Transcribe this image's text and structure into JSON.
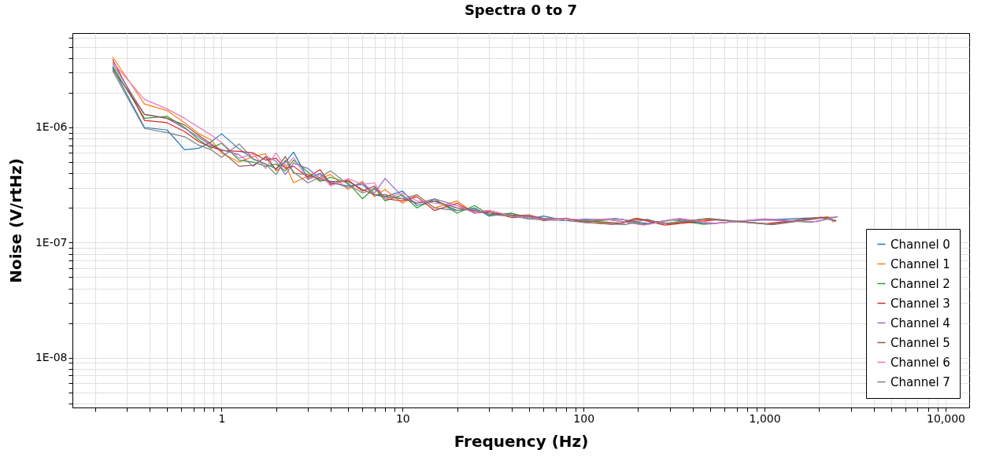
{
  "chart_data": {
    "type": "line",
    "title": "Spectra 0 to 7",
    "xlabel": "Frequency (Hz)",
    "ylabel": "Noise (V/rtHz)",
    "log": "xy",
    "grid": true,
    "legend": "bottom right",
    "line_style": "solid",
    "marker": "none",
    "xlim": [
      0.15,
      13500
    ],
    "ylim": [
      3.7e-09,
      6.6e-06
    ],
    "xticks": [
      {
        "value": 0.2,
        "label": null
      },
      {
        "value": 0.3,
        "label": null
      },
      {
        "value": 0.4,
        "label": null
      },
      {
        "value": 0.5,
        "label": null
      },
      {
        "value": 0.6,
        "label": null
      },
      {
        "value": 0.7,
        "label": null
      },
      {
        "value": 0.8,
        "label": null
      },
      {
        "value": 0.9,
        "label": null
      },
      1,
      {
        "value": 2,
        "label": null
      },
      {
        "value": 3,
        "label": null
      },
      {
        "value": 4,
        "label": null
      },
      {
        "value": 5,
        "label": null
      },
      {
        "value": 6,
        "label": null
      },
      {
        "value": 7,
        "label": null
      },
      {
        "value": 8,
        "label": null
      },
      {
        "value": 9,
        "label": null
      },
      10,
      {
        "value": 20,
        "label": null
      },
      {
        "value": 30,
        "label": null
      },
      {
        "value": 40,
        "label": null
      },
      {
        "value": 50,
        "label": null
      },
      {
        "value": 60,
        "label": null
      },
      {
        "value": 70,
        "label": null
      },
      {
        "value": 80,
        "label": null
      },
      {
        "value": 90,
        "label": null
      },
      100,
      {
        "value": 200,
        "label": null
      },
      {
        "value": 300,
        "label": null
      },
      {
        "value": 400,
        "label": null
      },
      {
        "value": 500,
        "label": null
      },
      {
        "value": 600,
        "label": null
      },
      {
        "value": 700,
        "label": null
      },
      {
        "value": 800,
        "label": null
      },
      {
        "value": 900,
        "label": null
      },
      {
        "value": 1000,
        "label": "1,000"
      },
      {
        "value": 2000,
        "label": null
      },
      {
        "value": 3000,
        "label": null
      },
      {
        "value": 4000,
        "label": null
      },
      {
        "value": 5000,
        "label": null
      },
      {
        "value": 6000,
        "label": null
      },
      {
        "value": 7000,
        "label": null
      },
      {
        "value": 8000,
        "label": null
      },
      {
        "value": 9000,
        "label": null
      },
      {
        "value": 10000,
        "label": "10,000"
      }
    ],
    "yticks": [
      {
        "value": 4e-09,
        "label": null
      },
      {
        "value": 5e-09,
        "label": null
      },
      {
        "value": 6e-09,
        "label": null
      },
      {
        "value": 7e-09,
        "label": null
      },
      {
        "value": 8e-09,
        "label": null
      },
      {
        "value": 9e-09,
        "label": null
      },
      {
        "value": 1e-08,
        "label": "1E-08"
      },
      {
        "value": 2e-08,
        "label": null
      },
      {
        "value": 3e-08,
        "label": null
      },
      {
        "value": 4e-08,
        "label": null
      },
      {
        "value": 5e-08,
        "label": null
      },
      {
        "value": 6e-08,
        "label": null
      },
      {
        "value": 7e-08,
        "label": null
      },
      {
        "value": 8e-08,
        "label": null
      },
      {
        "value": 9e-08,
        "label": null
      },
      {
        "value": 1e-07,
        "label": "1E-07"
      },
      {
        "value": 2e-07,
        "label": null
      },
      {
        "value": 3e-07,
        "label": null
      },
      {
        "value": 4e-07,
        "label": null
      },
      {
        "value": 5e-07,
        "label": null
      },
      {
        "value": 6e-07,
        "label": null
      },
      {
        "value": 7e-07,
        "label": null
      },
      {
        "value": 8e-07,
        "label": null
      },
      {
        "value": 9e-07,
        "label": null
      },
      {
        "value": 1e-06,
        "label": "1E-06"
      },
      {
        "value": 2e-06,
        "label": null
      },
      {
        "value": 3e-06,
        "label": null
      },
      {
        "value": 4e-06,
        "label": null
      },
      {
        "value": 5e-06,
        "label": null
      },
      {
        "value": 6e-06,
        "label": null
      }
    ],
    "series": [
      {
        "name": "Channel 0",
        "color": "#1f77b4",
        "x": [
          0.25,
          0.375,
          0.5,
          0.625,
          0.75,
          0.875,
          1,
          1.25,
          1.5,
          1.75,
          2,
          2.25,
          2.5,
          3,
          3.5,
          4,
          5,
          6,
          7,
          8,
          10,
          12,
          15,
          20,
          25,
          30,
          40,
          50,
          60,
          80,
          100,
          140,
          210,
          320,
          480,
          950,
          1900,
          2500
        ],
        "values": [
          3.3e-06,
          1e-06,
          9.5e-07,
          6.4e-07,
          6.6e-07,
          7.5e-07,
          8.8e-07,
          6.5e-07,
          5.3e-07,
          4.8e-07,
          4.4e-07,
          5e-07,
          6.1e-07,
          3.6e-07,
          4e-07,
          3.3e-07,
          3.1e-07,
          3.2e-07,
          2.6e-07,
          2.5e-07,
          2.8e-07,
          2.1e-07,
          2.3e-07,
          1.9e-07,
          2e-07,
          1.7e-07,
          1.8e-07,
          1.6e-07,
          1.7e-07,
          1.55e-07,
          1.6e-07,
          1.58e-07,
          1.44e-07,
          1.6e-07,
          1.46e-07,
          1.57e-07,
          1.64e-07,
          1.66e-07
        ]
      },
      {
        "name": "Channel 1",
        "color": "#ff7f0e",
        "x": [
          0.25,
          0.375,
          0.5,
          0.625,
          0.75,
          0.875,
          1,
          1.25,
          1.5,
          1.75,
          2,
          2.25,
          2.5,
          3,
          3.5,
          4,
          5,
          6,
          7,
          8,
          10,
          12,
          15,
          20,
          25,
          30,
          40,
          50,
          60,
          80,
          100,
          155,
          190,
          290,
          520,
          1050,
          2250,
          2400
        ],
        "values": [
          4.1e-06,
          1.6e-06,
          1.4e-06,
          1.1e-06,
          8.8e-07,
          7.8e-07,
          6e-07,
          5e-07,
          5.6e-07,
          5.9e-07,
          4.2e-07,
          4.8e-07,
          3.3e-07,
          3.8e-07,
          3.6e-07,
          3.9e-07,
          2.9e-07,
          3.4e-07,
          2.5e-07,
          2.9e-07,
          2.2e-07,
          2.6e-07,
          2e-07,
          2.3e-07,
          1.8e-07,
          1.9e-07,
          1.7e-07,
          1.75e-07,
          1.6e-07,
          1.62e-07,
          1.55e-07,
          1.45e-07,
          1.62e-07,
          1.47e-07,
          1.59e-07,
          1.45e-07,
          1.68e-07,
          1.5e-07
        ]
      },
      {
        "name": "Channel 2",
        "color": "#2ca02c",
        "x": [
          0.25,
          0.375,
          0.5,
          0.625,
          0.75,
          0.875,
          1,
          1.25,
          1.5,
          1.75,
          2,
          2.25,
          2.5,
          3,
          3.5,
          4,
          5,
          6,
          7,
          8,
          10,
          12,
          15,
          20,
          25,
          30,
          40,
          50,
          60,
          80,
          100,
          160,
          220,
          310,
          460,
          980,
          1800,
          2520
        ],
        "values": [
          3.4e-06,
          1.2e-06,
          1.25e-06,
          1e-06,
          7.8e-07,
          6.6e-07,
          7.3e-07,
          5.2e-07,
          5e-07,
          4.6e-07,
          4.8e-07,
          4.2e-07,
          5.2e-07,
          4.1e-07,
          3.4e-07,
          3.7e-07,
          3.3e-07,
          2.4e-07,
          3e-07,
          2.3e-07,
          2.6e-07,
          2e-07,
          2.4e-07,
          1.8e-07,
          2.1e-07,
          1.75e-07,
          1.8e-07,
          1.65e-07,
          1.6e-07,
          1.6e-07,
          1.52e-07,
          1.6e-07,
          1.43e-07,
          1.57e-07,
          1.44e-07,
          1.6e-07,
          1.5e-07,
          1.67e-07
        ]
      },
      {
        "name": "Channel 3",
        "color": "#d62728",
        "x": [
          0.25,
          0.375,
          0.5,
          0.625,
          0.75,
          0.875,
          1,
          1.25,
          1.5,
          1.75,
          2,
          2.25,
          2.5,
          3,
          3.5,
          4,
          5,
          6,
          7,
          8,
          10,
          12,
          15,
          20,
          25,
          30,
          40,
          50,
          60,
          80,
          100,
          145,
          205,
          280,
          540,
          1020,
          2050,
          2480
        ],
        "values": [
          3.9e-06,
          1.15e-06,
          1.1e-06,
          9.2e-07,
          7.5e-07,
          6.8e-07,
          6.3e-07,
          6.2e-07,
          6e-07,
          5.2e-07,
          5.4e-07,
          4.4e-07,
          4.6e-07,
          3.7e-07,
          4.3e-07,
          3.2e-07,
          3.5e-07,
          2.8e-07,
          3.1e-07,
          2.4e-07,
          2.3e-07,
          2.5e-07,
          1.9e-07,
          2.2e-07,
          1.8e-07,
          1.85e-07,
          1.65e-07,
          1.7e-07,
          1.55e-07,
          1.63e-07,
          1.5e-07,
          1.44e-07,
          1.59e-07,
          1.42e-07,
          1.58e-07,
          1.46e-07,
          1.66e-07,
          1.54e-07
        ]
      },
      {
        "name": "Channel 4",
        "color": "#9467bd",
        "x": [
          0.25,
          0.375,
          0.5,
          0.625,
          0.75,
          0.875,
          1,
          1.25,
          1.5,
          1.75,
          2,
          2.25,
          2.5,
          3,
          3.5,
          4,
          5,
          6,
          7,
          8,
          10,
          12,
          15,
          20,
          25,
          30,
          40,
          50,
          60,
          80,
          100,
          150,
          230,
          330,
          500,
          900,
          1950,
          2530
        ],
        "values": [
          3.6e-06,
          1.3e-06,
          1.2e-06,
          9.8e-07,
          8.2e-07,
          7e-07,
          6.4e-07,
          5.8e-07,
          4.6e-07,
          5.6e-07,
          5.1e-07,
          3.9e-07,
          4.9e-07,
          4.4e-07,
          3.6e-07,
          3.4e-07,
          3e-07,
          3.3e-07,
          2.7e-07,
          3.6e-07,
          2.5e-07,
          2.2e-07,
          2.4e-07,
          2.1e-07,
          1.85e-07,
          1.9e-07,
          1.7e-07,
          1.72e-07,
          1.62e-07,
          1.6e-07,
          1.56e-07,
          1.62e-07,
          1.46e-07,
          1.61e-07,
          1.45e-07,
          1.58e-07,
          1.52e-07,
          1.68e-07
        ]
      },
      {
        "name": "Channel 5",
        "color": "#8c564b",
        "x": [
          0.25,
          0.375,
          0.5,
          0.625,
          0.75,
          0.875,
          1,
          1.25,
          1.5,
          1.75,
          2,
          2.25,
          2.5,
          3,
          3.5,
          4,
          5,
          6,
          7,
          8,
          10,
          12,
          15,
          20,
          25,
          30,
          40,
          50,
          60,
          80,
          100,
          165,
          195,
          300,
          470,
          1100,
          2150,
          2470
        ],
        "values": [
          3.2e-06,
          1.3e-06,
          1.2e-06,
          1.05e-06,
          8.5e-07,
          7.2e-07,
          6.2e-07,
          4.6e-07,
          4.7e-07,
          5.5e-07,
          4.3e-07,
          5.6e-07,
          4e-07,
          3.9e-07,
          3.5e-07,
          3.4e-07,
          3.4e-07,
          2.9e-07,
          2.6e-07,
          2.6e-07,
          2.4e-07,
          2.2e-07,
          2.3e-07,
          2e-07,
          1.9e-07,
          1.8e-07,
          1.74e-07,
          1.68e-07,
          1.62e-07,
          1.6e-07,
          1.55e-07,
          1.47e-07,
          1.63e-07,
          1.45e-07,
          1.61e-07,
          1.43e-07,
          1.65e-07,
          1.53e-07
        ]
      },
      {
        "name": "Channel 6",
        "color": "#e377c2",
        "x": [
          0.25,
          0.375,
          0.5,
          0.625,
          0.75,
          0.875,
          1,
          1.25,
          1.5,
          1.75,
          2,
          2.25,
          2.5,
          3,
          3.5,
          4,
          5,
          6,
          7,
          8,
          10,
          12,
          15,
          20,
          25,
          30,
          40,
          50,
          60,
          80,
          100,
          135,
          215,
          340,
          530,
          1000,
          1850,
          2550
        ],
        "values": [
          3.7e-06,
          1.75e-06,
          1.45e-06,
          1.2e-06,
          1e-06,
          8.6e-07,
          7.4e-07,
          5.4e-07,
          5.9e-07,
          4.4e-07,
          6e-07,
          4.5e-07,
          5.5e-07,
          3.5e-07,
          3.9e-07,
          3.1e-07,
          3.6e-07,
          3.2e-07,
          3.3e-07,
          2.4e-07,
          2.7e-07,
          2.3e-07,
          2.2e-07,
          2.1e-07,
          1.8e-07,
          1.9e-07,
          1.7e-07,
          1.66e-07,
          1.6e-07,
          1.61e-07,
          1.57e-07,
          1.59e-07,
          1.42e-07,
          1.62e-07,
          1.47e-07,
          1.61e-07,
          1.51e-07,
          1.69e-07
        ]
      },
      {
        "name": "Channel 7",
        "color": "#7f7f7f",
        "x": [
          0.25,
          0.375,
          0.5,
          0.625,
          0.75,
          0.875,
          1,
          1.25,
          1.5,
          1.75,
          2,
          2.25,
          2.5,
          3,
          3.5,
          4,
          5,
          6,
          7,
          8,
          10,
          12,
          15,
          20,
          25,
          30,
          40,
          50,
          60,
          80,
          100,
          170,
          225,
          270,
          490,
          1080,
          2000,
          2490
        ],
        "values": [
          3.1e-06,
          9.8e-07,
          9e-07,
          8.3e-07,
          7e-07,
          6.4e-07,
          5.5e-07,
          7.2e-07,
          5.3e-07,
          4.8e-07,
          3.9e-07,
          5.2e-07,
          4.1e-07,
          3.3e-07,
          3.7e-07,
          4.2e-07,
          3.2e-07,
          2.7e-07,
          2.9e-07,
          2.5e-07,
          2.4e-07,
          2.6e-07,
          2e-07,
          1.9e-07,
          1.95e-07,
          1.75e-07,
          1.7e-07,
          1.6e-07,
          1.58e-07,
          1.55e-07,
          1.5e-07,
          1.43e-07,
          1.6e-07,
          1.46e-07,
          1.62e-07,
          1.44e-07,
          1.64e-07,
          1.56e-07
        ]
      }
    ]
  }
}
